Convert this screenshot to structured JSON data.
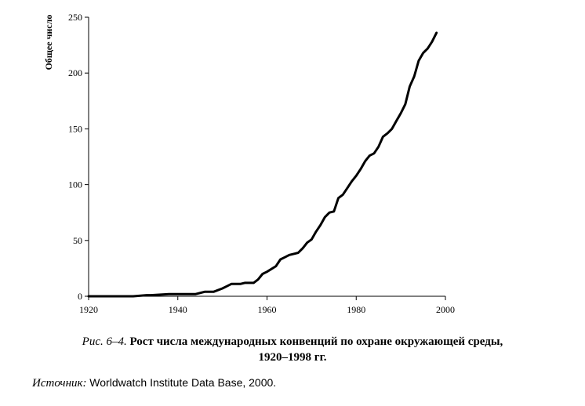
{
  "chart_data": {
    "type": "line",
    "ylabel": "Общее число",
    "xlabel": "",
    "xlim": [
      1920,
      2000
    ],
    "ylim": [
      0,
      250
    ],
    "xticks": [
      "1920",
      "1940",
      "1960",
      "1980",
      "2000"
    ],
    "yticks": [
      "0",
      "50",
      "100",
      "150",
      "200",
      "250"
    ],
    "grid": false,
    "series": [
      {
        "x": [
          1920,
          1925,
          1930,
          1933,
          1934,
          1938,
          1944,
          1946,
          1948,
          1950,
          1951,
          1952,
          1954,
          1955,
          1957,
          1958,
          1959,
          1960,
          1962,
          1963,
          1964,
          1965,
          1966,
          1967,
          1968,
          1969,
          1970,
          1971,
          1972,
          1973,
          1974,
          1975,
          1976,
          1977,
          1978,
          1979,
          1980,
          1981,
          1982,
          1983,
          1984,
          1985,
          1986,
          1987,
          1988,
          1989,
          1990,
          1991,
          1992,
          1993,
          1994,
          1995,
          1996,
          1997,
          1998
        ],
        "values": [
          0,
          0,
          0,
          1,
          1,
          2,
          2,
          4,
          4,
          7,
          9,
          11,
          11,
          12,
          12,
          15,
          20,
          22,
          27,
          33,
          35,
          37,
          38,
          39,
          43,
          48,
          51,
          58,
          64,
          71,
          75,
          76,
          88,
          91,
          97,
          103,
          108,
          114,
          121,
          126,
          128,
          134,
          143,
          146,
          150,
          157,
          164,
          172,
          188,
          197,
          211,
          218,
          222,
          228,
          236
        ]
      }
    ]
  },
  "caption": {
    "prefix": "Рис. 6–4.",
    "title": "Рост числа международных конвенций по охране окружающей среды,",
    "line2": "1920–1998 гг."
  },
  "source": {
    "label": "Источник:",
    "text": "Worldwatch Institute Data Base, 2000."
  }
}
